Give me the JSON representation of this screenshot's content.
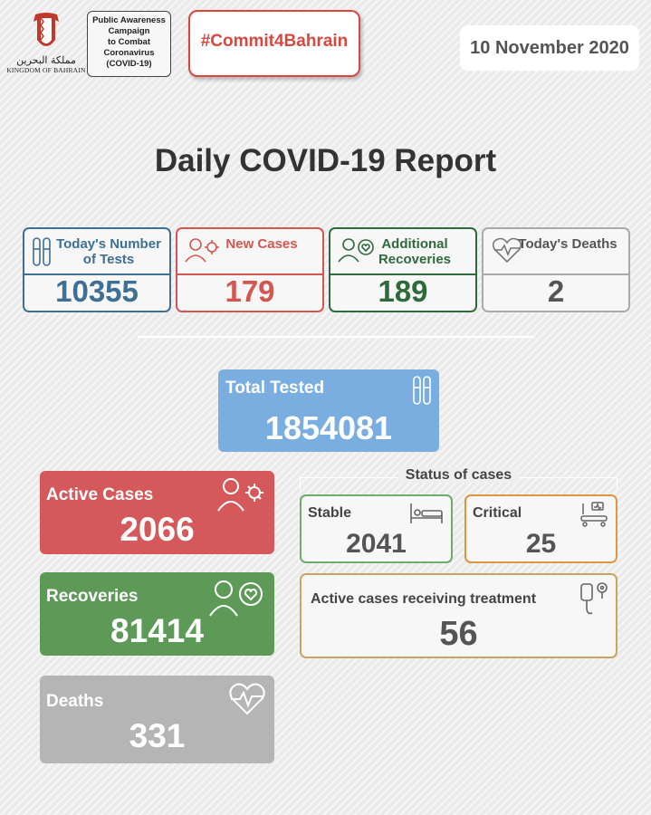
{
  "header": {
    "kingdom_ar": "مملكة البحرين",
    "kingdom_en": "KINGDOM OF BAHRAIN",
    "awareness_lines": [
      "Public Awareness",
      "Campaign",
      "to Combat",
      "Coronavirus",
      "(COVID-19)"
    ],
    "hashtag": "#Commit4Bahrain",
    "date": "10 November 2020"
  },
  "title": "Daily COVID-19 Report",
  "daily": {
    "tests": {
      "label": "Today's Number of Tests",
      "value": "10355",
      "icon": "test-tubes-icon"
    },
    "new_cases": {
      "label": "New Cases",
      "value": "179",
      "icon": "person-virus-icon"
    },
    "recoveries": {
      "label": "Additional Recoveries",
      "value": "189",
      "icon": "person-heart-icon"
    },
    "deaths": {
      "label": "Today's Deaths",
      "value": "2",
      "icon": "heartbeat-icon"
    }
  },
  "total_tested": {
    "label": "Total Tested",
    "value": "1854081",
    "icon": "test-tubes-icon"
  },
  "totals": {
    "active": {
      "label": "Active Cases",
      "value": "2066",
      "icon": "person-virus-icon"
    },
    "recoveries": {
      "label": "Recoveries",
      "value": "81414",
      "icon": "person-heart-icon"
    },
    "deaths": {
      "label": "Deaths",
      "value": "331",
      "icon": "heartbeat-icon"
    }
  },
  "status": {
    "title": "Status of cases",
    "stable": {
      "label": "Stable",
      "value": "2041",
      "icon": "bed-icon"
    },
    "critical": {
      "label": "Critical",
      "value": "25",
      "icon": "icu-bed-icon"
    },
    "treatment": {
      "label": "Active cases receiving treatment",
      "value": "56",
      "icon": "iv-drip-icon"
    }
  },
  "colors": {
    "blue": "#3e6f95",
    "red": "#d5564f",
    "green": "#2f6b3a",
    "grey": "#aaaaaa",
    "total_blue": "#7aaee0",
    "active_red": "#d5595a",
    "rec_green": "#5e9a57",
    "stable_green": "#6cae6a",
    "critical_orange": "#e0963a",
    "treat_gold": "#c8a660"
  }
}
